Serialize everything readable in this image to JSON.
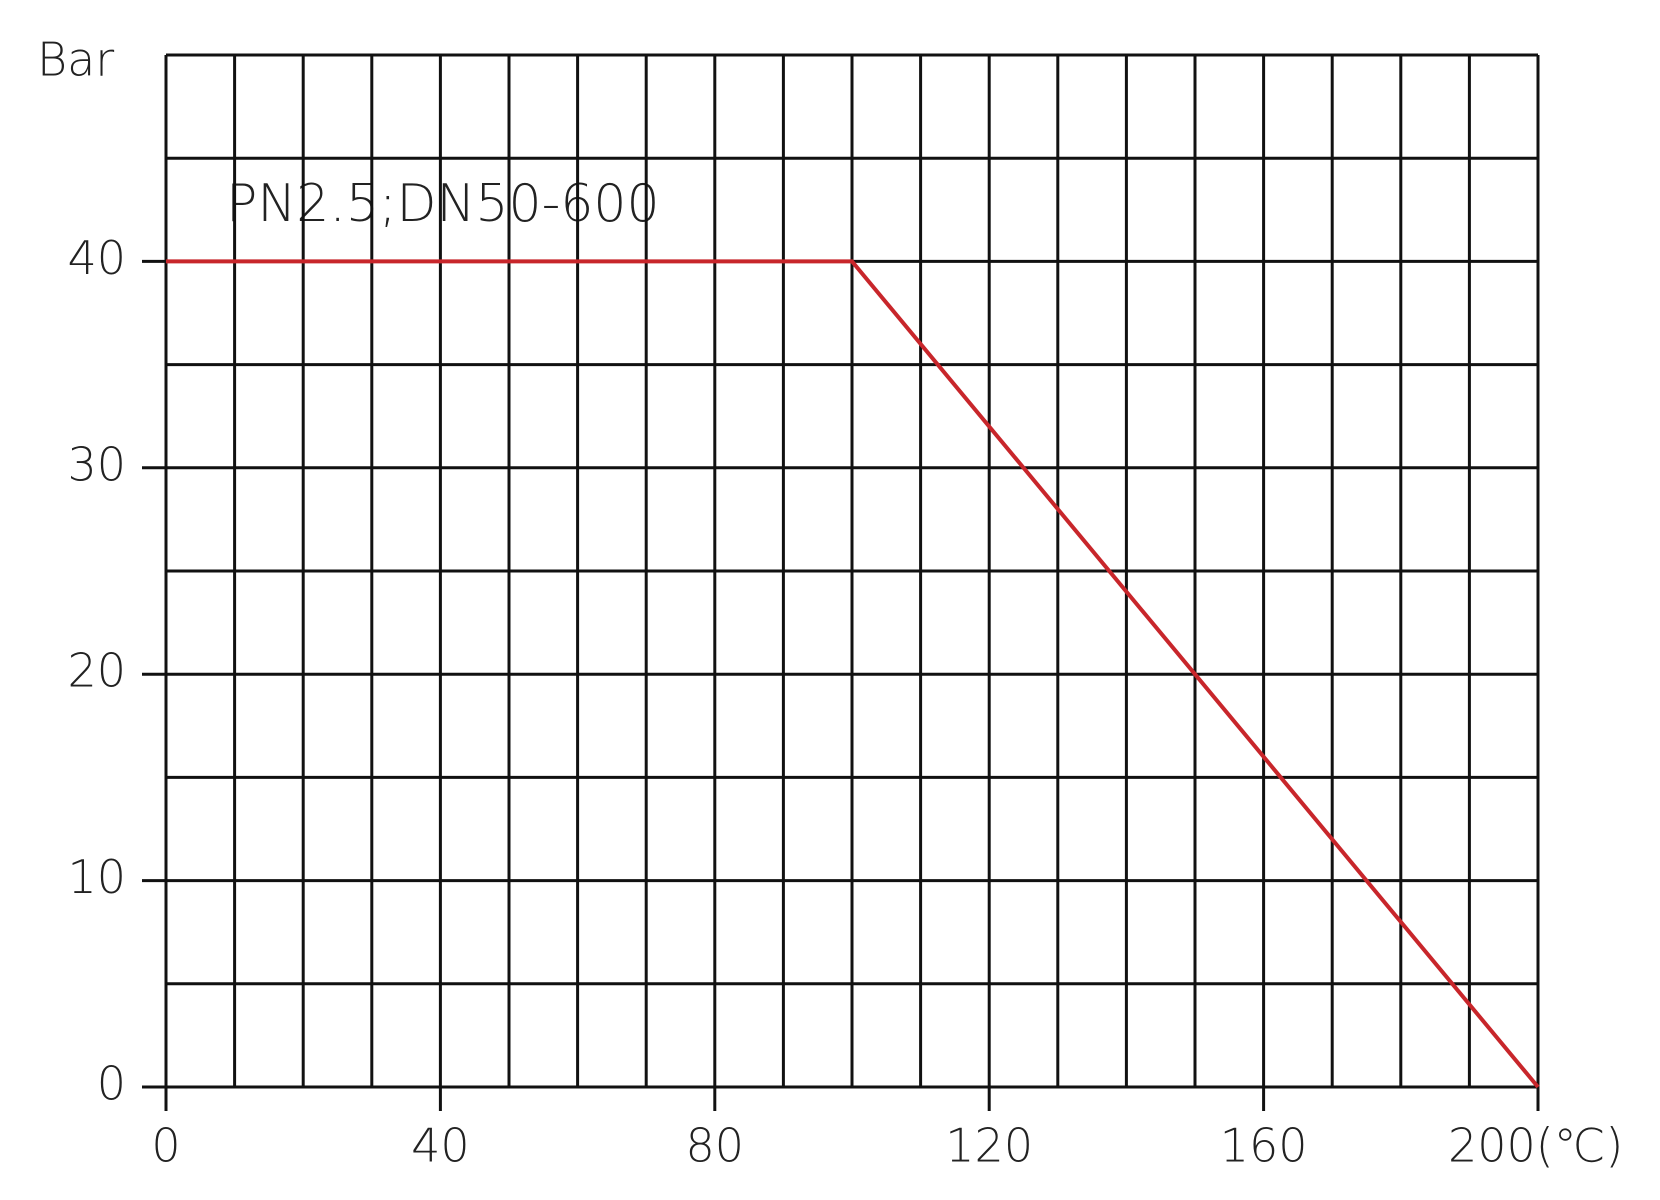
{
  "chart_data": {
    "type": "line",
    "y_label": "Bar",
    "annotation": "PN2.5;DN50-600",
    "x": [
      0,
      100,
      200
    ],
    "series": [
      {
        "name": "PN2.5;DN50-600",
        "color": "#c8262b",
        "values": [
          40,
          40,
          0
        ]
      }
    ],
    "xlim": [
      0,
      200
    ],
    "ylim": [
      0,
      50
    ],
    "xticks": [
      0,
      40,
      80,
      120,
      160,
      {
        "value": 200,
        "label": "200(℃)"
      }
    ],
    "yticks": [
      0,
      10,
      20,
      30,
      40
    ],
    "grid": true,
    "grid_xticks": [
      0,
      10,
      20,
      30,
      40,
      50,
      60,
      70,
      80,
      90,
      100,
      110,
      120,
      130,
      140,
      150,
      160,
      170,
      180,
      190,
      200
    ],
    "grid_yticks": [
      0,
      5,
      10,
      15,
      20,
      25,
      30,
      35,
      40,
      45,
      50
    ]
  }
}
